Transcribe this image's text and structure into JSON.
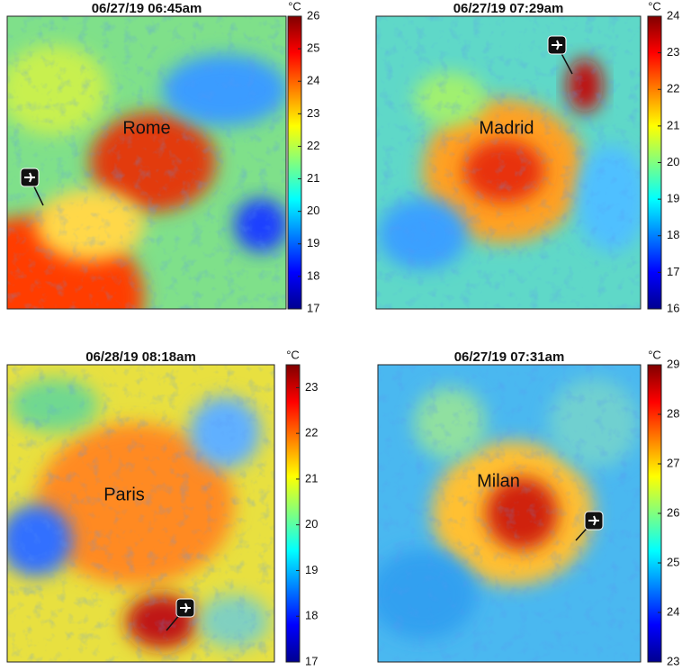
{
  "chart_data": [
    {
      "type": "heatmap",
      "title": "06/27/19 06:45am",
      "label": "Rome",
      "colorbar_label": "°C",
      "colormap": "jet",
      "clim": [
        17,
        26
      ],
      "cticks": [
        17,
        18,
        19,
        20,
        21,
        22,
        23,
        24,
        25,
        26
      ]
    },
    {
      "type": "heatmap",
      "title": "06/27/19 07:29am",
      "label": "Madrid",
      "colorbar_label": "°C",
      "colormap": "jet",
      "clim": [
        16,
        24
      ],
      "cticks": [
        16,
        17,
        18,
        19,
        20,
        21,
        22,
        23,
        24
      ]
    },
    {
      "type": "heatmap",
      "title": "06/28/19 08:18am",
      "label": "Paris",
      "colorbar_label": "°C",
      "colormap": "jet",
      "clim": [
        17,
        23.5
      ],
      "cticks": [
        17,
        18,
        19,
        20,
        21,
        22,
        23
      ]
    },
    {
      "type": "heatmap",
      "title": "06/27/19 07:31am",
      "label": "Milan",
      "colorbar_label": "°C",
      "colormap": "jet",
      "clim": [
        23,
        29
      ],
      "cticks": [
        23,
        24,
        25,
        26,
        27,
        28,
        29
      ]
    }
  ]
}
